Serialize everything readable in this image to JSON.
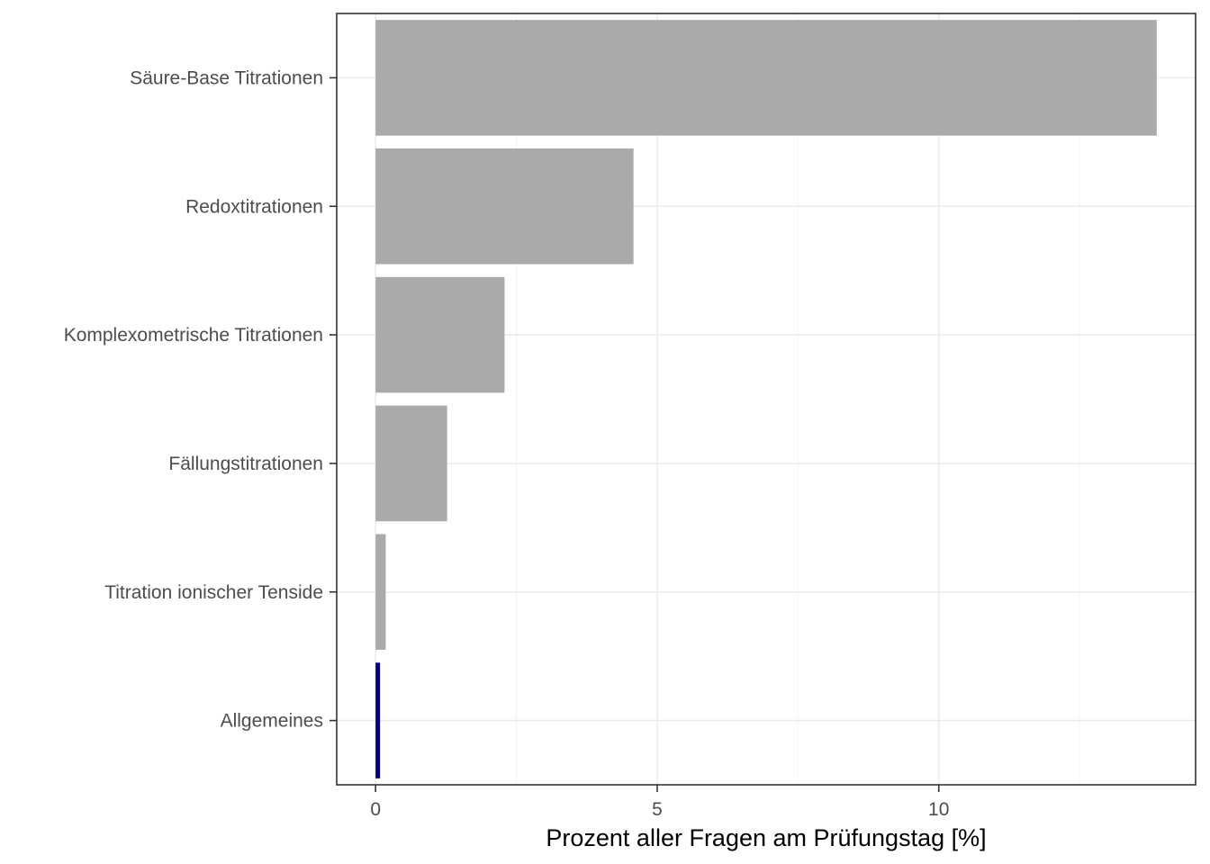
{
  "chart_data": {
    "type": "bar",
    "orientation": "horizontal",
    "categories": [
      "Säure-Base Titrationen",
      "Redoxtitrationen",
      "Komplexometrische Titrationen",
      "Fällungstitrationen",
      "Titration ionischer Tenside",
      "Allgemeines"
    ],
    "values": [
      13.87,
      4.58,
      2.29,
      1.27,
      0.18,
      0.08
    ],
    "bar_colors": [
      "#aaaaaa",
      "#aaaaaa",
      "#aaaaaa",
      "#aaaaaa",
      "#aaaaaa",
      "#00007f"
    ],
    "xlabel": "Prozent aller Fragen am Prüfungstag [%]",
    "ylabel": "",
    "xlim": [
      -0.69,
      14.56
    ],
    "xticks": [
      0,
      5,
      10
    ],
    "xtick_labels": [
      "0",
      "5",
      "10"
    ],
    "grid": true,
    "legend": "none"
  }
}
